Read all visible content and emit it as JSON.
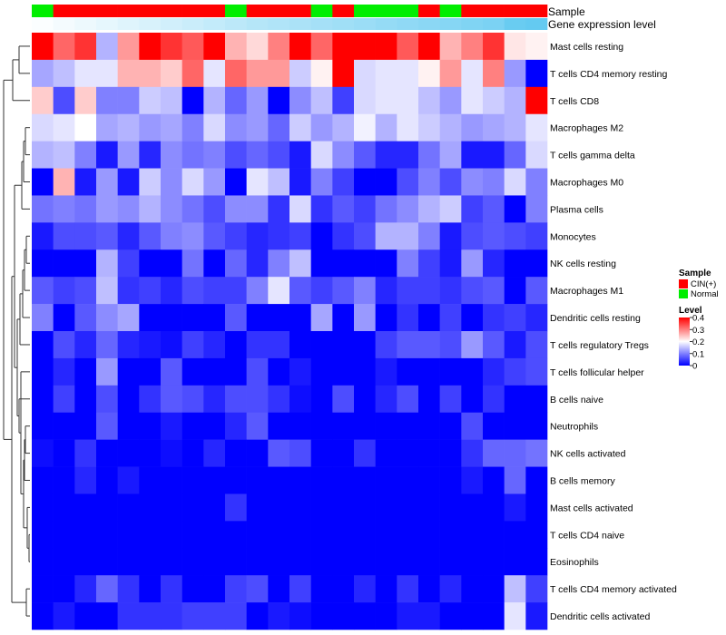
{
  "chart_data": {
    "type": "heatmap",
    "annotation_labels": [
      "Sample",
      "Gene expression level"
    ],
    "colors": {
      "low": "#0000FF",
      "mid": "#FFFFFF",
      "high": "#FF0000",
      "cin": "#FF0000",
      "normal": "#00EE00",
      "dendro": "#333333",
      "legend_border": "#000000"
    },
    "sample_groups": [
      "N",
      "C",
      "C",
      "C",
      "C",
      "C",
      "C",
      "C",
      "C",
      "N",
      "C",
      "C",
      "C",
      "N",
      "C",
      "N",
      "N",
      "N",
      "C",
      "N",
      "C",
      "C",
      "C",
      "C"
    ],
    "expression_level": [
      0.98,
      0.94,
      0.9,
      0.86,
      0.82,
      0.78,
      0.74,
      0.7,
      0.66,
      0.62,
      0.58,
      0.55,
      0.52,
      0.49,
      0.46,
      0.43,
      0.4,
      0.37,
      0.34,
      0.31,
      0.28,
      0.25,
      0.15,
      0.12
    ],
    "rows": [
      "Mast cells resting",
      "T cells CD4 memory resting",
      "T cells CD8",
      "Macrophages M2",
      "T cells gamma delta",
      "Macrophages M0",
      "Plasma cells",
      "Monocytes",
      "NK cells resting",
      "Macrophages M1",
      "Dendritic cells resting",
      "T cells regulatory  Tregs",
      "T cells follicular helper",
      "B cells naive",
      "Neutrophils",
      "NK cells activated",
      "B cells memory",
      "Mast cells activated",
      "T cells CD4 naive",
      "Eosinophils",
      "T cells CD4 memory activated",
      "Dendritic cells activated"
    ],
    "values": [
      [
        0.4,
        0.32,
        0.36,
        0.14,
        0.28,
        0.4,
        0.36,
        0.33,
        0.4,
        0.26,
        0.23,
        0.3,
        0.4,
        0.32,
        0.4,
        0.4,
        0.4,
        0.33,
        0.4,
        0.26,
        0.3,
        0.36,
        0.22,
        0.21
      ],
      [
        0.13,
        0.15,
        0.18,
        0.18,
        0.26,
        0.26,
        0.24,
        0.32,
        0.18,
        0.32,
        0.28,
        0.28,
        0.16,
        0.21,
        0.4,
        0.17,
        0.18,
        0.18,
        0.21,
        0.28,
        0.18,
        0.3,
        0.12,
        0.0
      ],
      [
        0.24,
        0.06,
        0.24,
        0.1,
        0.1,
        0.16,
        0.15,
        0.0,
        0.14,
        0.08,
        0.12,
        0.0,
        0.11,
        0.15,
        0.05,
        0.17,
        0.18,
        0.18,
        0.15,
        0.12,
        0.18,
        0.16,
        0.14,
        0.4
      ],
      [
        0.17,
        0.18,
        0.2,
        0.13,
        0.14,
        0.12,
        0.13,
        0.1,
        0.17,
        0.11,
        0.12,
        0.08,
        0.16,
        0.12,
        0.14,
        0.19,
        0.14,
        0.18,
        0.16,
        0.14,
        0.12,
        0.13,
        0.14,
        0.18
      ],
      [
        0.14,
        0.15,
        0.1,
        0.02,
        0.12,
        0.03,
        0.11,
        0.09,
        0.1,
        0.06,
        0.08,
        0.06,
        0.02,
        0.17,
        0.11,
        0.07,
        0.03,
        0.03,
        0.09,
        0.13,
        0.02,
        0.02,
        0.08,
        0.17
      ],
      [
        0.0,
        0.26,
        0.02,
        0.12,
        0.02,
        0.16,
        0.11,
        0.17,
        0.12,
        0.0,
        0.18,
        0.15,
        0.02,
        0.1,
        0.05,
        0.0,
        0.0,
        0.06,
        0.1,
        0.06,
        0.11,
        0.1,
        0.17,
        0.1
      ],
      [
        0.09,
        0.1,
        0.09,
        0.12,
        0.11,
        0.14,
        0.11,
        0.09,
        0.06,
        0.11,
        0.11,
        0.04,
        0.17,
        0.04,
        0.07,
        0.05,
        0.09,
        0.11,
        0.14,
        0.16,
        0.05,
        0.07,
        0.0,
        0.1
      ],
      [
        0.02,
        0.06,
        0.06,
        0.07,
        0.03,
        0.07,
        0.1,
        0.11,
        0.07,
        0.05,
        0.03,
        0.04,
        0.05,
        0.0,
        0.04,
        0.06,
        0.14,
        0.14,
        0.1,
        0.02,
        0.06,
        0.07,
        0.06,
        0.05
      ],
      [
        0.0,
        0.0,
        0.0,
        0.14,
        0.05,
        0.0,
        0.0,
        0.09,
        0.0,
        0.08,
        0.03,
        0.1,
        0.15,
        0.0,
        0.0,
        0.0,
        0.0,
        0.1,
        0.05,
        0.02,
        0.12,
        0.03,
        0.0,
        0.0
      ],
      [
        0.07,
        0.05,
        0.06,
        0.15,
        0.04,
        0.05,
        0.03,
        0.06,
        0.05,
        0.05,
        0.1,
        0.18,
        0.07,
        0.05,
        0.07,
        0.1,
        0.03,
        0.05,
        0.05,
        0.04,
        0.06,
        0.07,
        0.0,
        0.07
      ],
      [
        0.1,
        0.0,
        0.07,
        0.11,
        0.13,
        0.0,
        0.0,
        0.0,
        0.0,
        0.07,
        0.0,
        0.0,
        0.0,
        0.13,
        0.0,
        0.12,
        0.0,
        0.04,
        0.0,
        0.05,
        0.0,
        0.04,
        0.05,
        0.03
      ],
      [
        0.0,
        0.06,
        0.03,
        0.08,
        0.03,
        0.02,
        0.01,
        0.05,
        0.03,
        0.0,
        0.04,
        0.04,
        0.0,
        0.0,
        0.0,
        0.0,
        0.05,
        0.07,
        0.07,
        0.06,
        0.12,
        0.07,
        0.02,
        0.06
      ],
      [
        0.0,
        0.03,
        0.0,
        0.12,
        0.0,
        0.0,
        0.07,
        0.0,
        0.0,
        0.0,
        0.06,
        0.0,
        0.02,
        0.0,
        0.0,
        0.0,
        0.02,
        0.0,
        0.0,
        0.0,
        0.0,
        0.03,
        0.05,
        0.06
      ],
      [
        0.0,
        0.05,
        0.0,
        0.06,
        0.0,
        0.04,
        0.07,
        0.06,
        0.03,
        0.06,
        0.06,
        0.04,
        0.01,
        0.0,
        0.06,
        0.0,
        0.03,
        0.06,
        0.0,
        0.05,
        0.0,
        0.04,
        0.0,
        0.0
      ],
      [
        0.0,
        0.0,
        0.0,
        0.07,
        0.0,
        0.0,
        0.02,
        0.0,
        0.0,
        0.03,
        0.07,
        0.0,
        0.0,
        0.0,
        0.0,
        0.0,
        0.0,
        0.0,
        0.0,
        0.0,
        0.06,
        0.0,
        0.0,
        0.0
      ],
      [
        0.01,
        0.0,
        0.04,
        0.0,
        0.0,
        0.0,
        0.01,
        0.0,
        0.03,
        0.0,
        0.0,
        0.07,
        0.06,
        0.0,
        0.0,
        0.04,
        0.0,
        0.0,
        0.0,
        0.0,
        0.04,
        0.08,
        0.08,
        0.09
      ],
      [
        0.0,
        0.0,
        0.03,
        0.0,
        0.02,
        0.0,
        0.0,
        0.0,
        0.0,
        0.0,
        0.0,
        0.0,
        0.0,
        0.0,
        0.0,
        0.0,
        0.0,
        0.0,
        0.0,
        0.0,
        0.02,
        0.0,
        0.08,
        0.0
      ],
      [
        0.0,
        0.0,
        0.0,
        0.0,
        0.0,
        0.0,
        0.0,
        0.0,
        0.0,
        0.04,
        0.0,
        0.0,
        0.0,
        0.0,
        0.0,
        0.0,
        0.0,
        0.0,
        0.0,
        0.0,
        0.0,
        0.0,
        0.02,
        0.0
      ],
      [
        0.0,
        0.0,
        0.0,
        0.0,
        0.0,
        0.0,
        0.0,
        0.0,
        0.0,
        0.0,
        0.0,
        0.0,
        0.0,
        0.0,
        0.0,
        0.0,
        0.0,
        0.0,
        0.0,
        0.0,
        0.0,
        0.0,
        0.0,
        0.0
      ],
      [
        0.0,
        0.0,
        0.0,
        0.0,
        0.0,
        0.0,
        0.0,
        0.0,
        0.0,
        0.0,
        0.0,
        0.0,
        0.0,
        0.0,
        0.0,
        0.0,
        0.0,
        0.0,
        0.0,
        0.0,
        0.0,
        0.0,
        0.0,
        0.0
      ],
      [
        0.0,
        0.0,
        0.03,
        0.08,
        0.04,
        0.0,
        0.04,
        0.0,
        0.0,
        0.05,
        0.06,
        0.0,
        0.05,
        0.0,
        0.0,
        0.03,
        0.0,
        0.04,
        0.0,
        0.03,
        0.0,
        0.0,
        0.15,
        0.05
      ],
      [
        0.0,
        0.02,
        0.0,
        0.0,
        0.04,
        0.04,
        0.04,
        0.05,
        0.05,
        0.05,
        0.0,
        0.02,
        0.01,
        0.0,
        0.0,
        0.0,
        0.0,
        0.02,
        0.02,
        0.0,
        0.0,
        0.0,
        0.18,
        0.02
      ]
    ],
    "legend_sample": {
      "title": "Sample",
      "entries": [
        {
          "label": "CIN(+)",
          "code": "C"
        },
        {
          "label": "Normal",
          "code": "N"
        }
      ]
    },
    "legend_level": {
      "title": "Level",
      "ticks": [
        0.4,
        0.3,
        0.2,
        0.1,
        0
      ],
      "range": [
        0,
        0.4
      ]
    }
  }
}
